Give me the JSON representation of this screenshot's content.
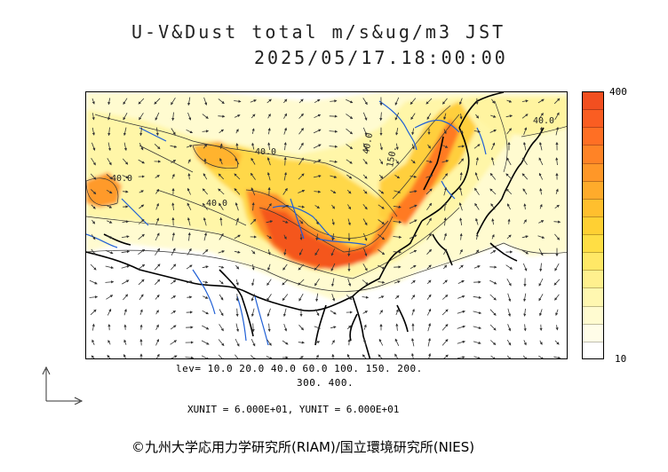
{
  "title": {
    "line1": "U-V&Dust total m/s&ug/m3 JST",
    "line2": "2025/05/17.18:00:00"
  },
  "map": {
    "contour_labels": [
      "40.0",
      "40.0",
      "40.0",
      "40.0",
      "150.",
      "40.0"
    ],
    "colors": {
      "land_line": "#000000",
      "river": "#1f5fd6",
      "contour": "#333333",
      "vector": "#333333"
    }
  },
  "colorbar": {
    "max_label": "400",
    "min_label": "10",
    "levels": [
      10,
      20,
      40,
      60,
      100,
      150,
      200,
      300,
      400
    ],
    "colors": [
      "#ffffff",
      "#fffde8",
      "#fffbd0",
      "#fff7b0",
      "#fff08e",
      "#ffe866",
      "#ffde44",
      "#ffd033",
      "#ffbf2e",
      "#ffab2b",
      "#ff9728",
      "#ff8326",
      "#ff6f24",
      "#fa5d22",
      "#f24f20"
    ]
  },
  "footer": {
    "lev_line1": "lev= 10.0 20.0 40.0 60.0 100. 150. 200.",
    "lev_line2": "300. 400.",
    "units": "XUNIT = 6.000E+01, YUNIT = 6.000E+01",
    "copyright": "©九州大学応用力学研究所(RIAM)/国立環境研究所(NIES)"
  }
}
